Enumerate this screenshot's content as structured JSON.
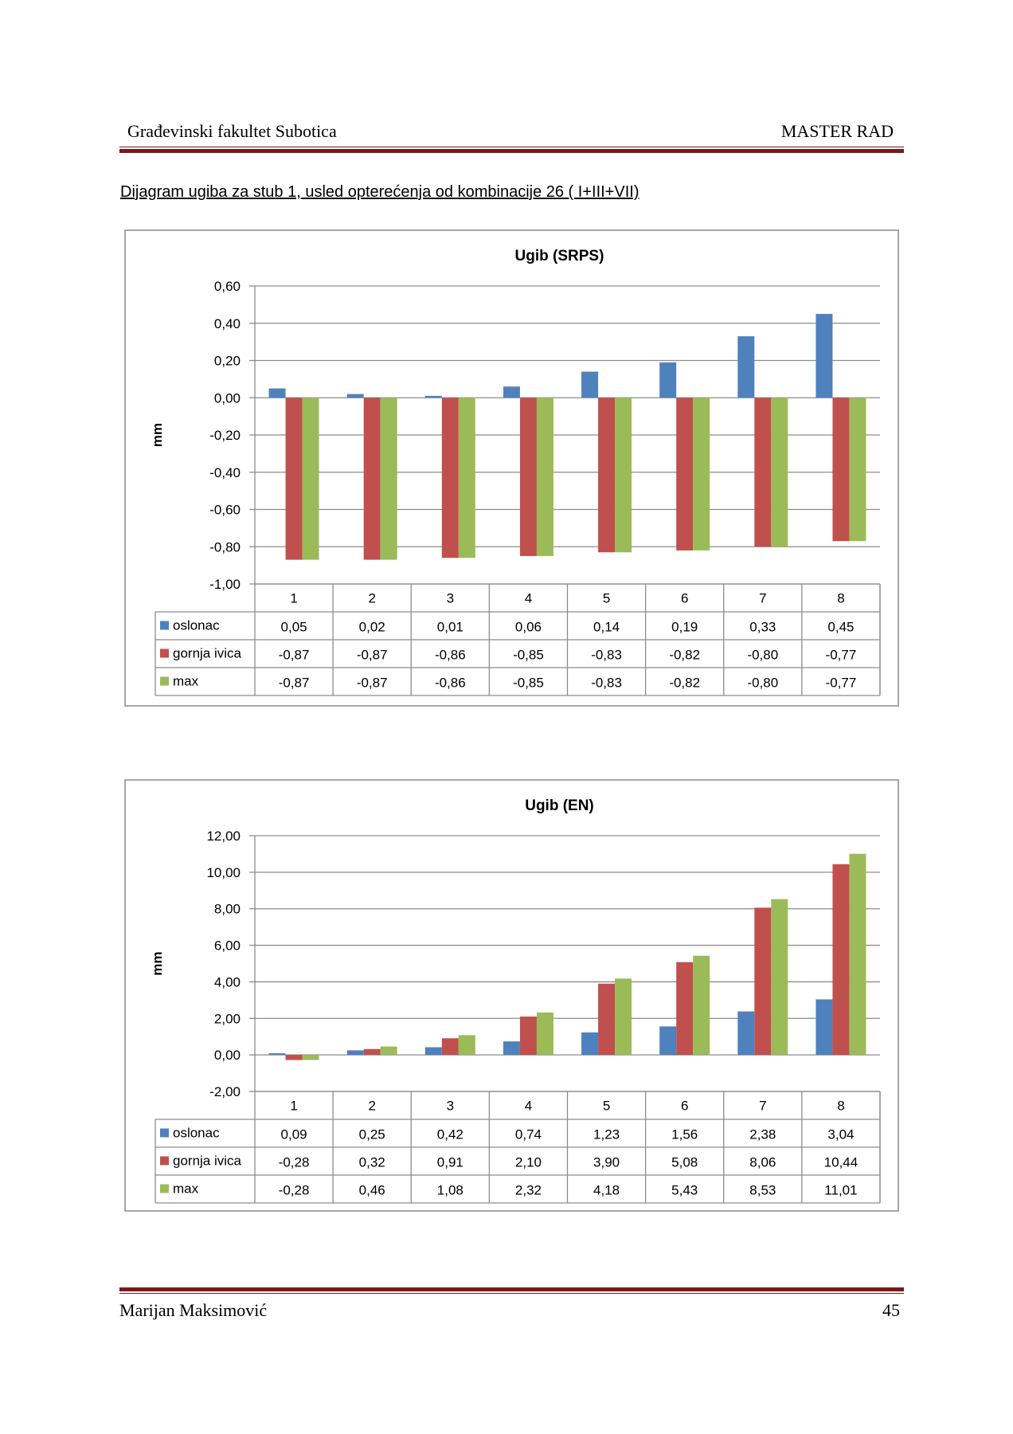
{
  "header": {
    "left": "Građevinski fakultet Subotica",
    "right": "MASTER RAD"
  },
  "caption": "Dijagram ugiba za stub 1, usled opterećenja od kombinacije 26 ( I+III+VII)",
  "footer": {
    "author": "Marijan Maksimović",
    "page": "45"
  },
  "colors": {
    "oslonac": "#4f81bd",
    "gornja ivica": "#c0504d",
    "max": "#9bbb59",
    "rule": "#7b1a1a"
  },
  "chart_data": [
    {
      "type": "bar",
      "title": "Ugib (SRPS)",
      "ylabel": "mm",
      "xlabel": "",
      "categories": [
        "1",
        "2",
        "3",
        "4",
        "5",
        "6",
        "7",
        "8"
      ],
      "ylim": [
        -1.0,
        0.6
      ],
      "yticks": [
        0.6,
        0.4,
        0.2,
        0.0,
        -0.2,
        -0.4,
        -0.6,
        -0.8,
        -1.0
      ],
      "grid": true,
      "legend": "data-table",
      "series": [
        {
          "name": "oslonac",
          "values": [
            0.05,
            0.02,
            0.01,
            0.06,
            0.14,
            0.19,
            0.33,
            0.45
          ]
        },
        {
          "name": "gornja ivica",
          "values": [
            -0.87,
            -0.87,
            -0.86,
            -0.85,
            -0.83,
            -0.82,
            -0.8,
            -0.77
          ]
        },
        {
          "name": "max",
          "values": [
            -0.87,
            -0.87,
            -0.86,
            -0.85,
            -0.83,
            -0.82,
            -0.8,
            -0.77
          ]
        }
      ]
    },
    {
      "type": "bar",
      "title": "Ugib (EN)",
      "ylabel": "mm",
      "xlabel": "",
      "categories": [
        "1",
        "2",
        "3",
        "4",
        "5",
        "6",
        "7",
        "8"
      ],
      "ylim": [
        -2.0,
        12.0
      ],
      "yticks": [
        12.0,
        10.0,
        8.0,
        6.0,
        4.0,
        2.0,
        0.0,
        -2.0
      ],
      "grid": true,
      "legend": "data-table",
      "series": [
        {
          "name": "oslonac",
          "values": [
            0.09,
            0.25,
            0.42,
            0.74,
            1.23,
            1.56,
            2.38,
            3.04
          ]
        },
        {
          "name": "gornja ivica",
          "values": [
            -0.28,
            0.32,
            0.91,
            2.1,
            3.9,
            5.08,
            8.06,
            10.44
          ]
        },
        {
          "name": "max",
          "values": [
            -0.28,
            0.46,
            1.08,
            2.32,
            4.18,
            5.43,
            8.53,
            11.01
          ]
        }
      ]
    }
  ]
}
